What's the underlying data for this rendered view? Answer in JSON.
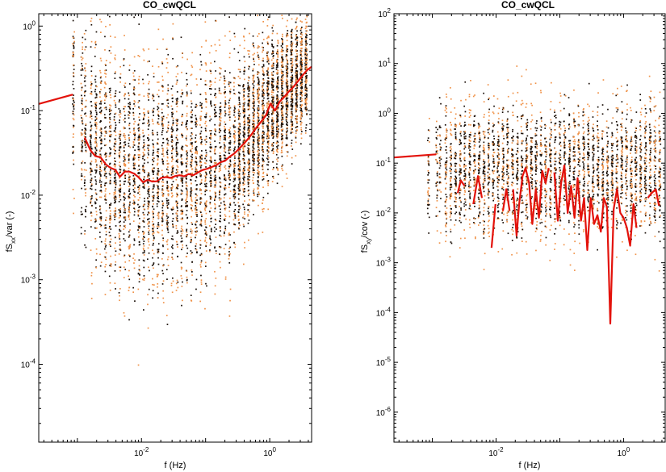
{
  "chart_data": [
    {
      "type": "scatter",
      "title": "CO_cwQCL",
      "xlabel": "f (Hz)",
      "ylabel_main": "fS",
      "ylabel_sub": "xx",
      "ylabel_rest": "/var (-)",
      "xscale": "log",
      "yscale": "log",
      "xlim": [
        0.00025,
        4.5
      ],
      "ylim": [
        1.2e-05,
        1.4
      ],
      "xticks": [
        {
          "v": 0.01,
          "base": "10",
          "exp": "-2"
        },
        {
          "v": 1,
          "base": "10",
          "exp": "0"
        }
      ],
      "yticks": [
        {
          "v": 0.0001,
          "base": "10",
          "exp": "-4"
        },
        {
          "v": 0.001,
          "base": "10",
          "exp": "-3"
        },
        {
          "v": 0.01,
          "base": "10",
          "exp": "-2"
        },
        {
          "v": 0.1,
          "base": "10",
          "exp": "-1"
        },
        {
          "v": 1,
          "base": "10",
          "exp": "0"
        }
      ],
      "scatter_series": [
        {
          "name": "dark points",
          "color": "#1a0f08"
        },
        {
          "name": "orange points",
          "color": "#f0934a"
        }
      ],
      "median_line": {
        "color": "#e3120b",
        "segments": [
          {
            "x": [
              0.00025,
              0.00085
            ],
            "y": [
              0.12,
              0.155
            ]
          },
          {
            "x": [
              0.0013,
              0.0016,
              0.0019,
              0.0023,
              0.0028,
              0.0033,
              0.0039,
              0.0046,
              0.0055,
              0.0065,
              0.0077,
              0.009,
              0.0106,
              0.0125,
              0.0147,
              0.0173,
              0.0204,
              0.024,
              0.0283,
              0.0333,
              0.0392,
              0.0462,
              0.0544,
              0.064,
              0.0754,
              0.0888,
              0.105,
              0.123,
              0.145,
              0.171,
              0.201,
              0.237,
              0.279,
              0.328,
              0.387,
              0.455,
              0.536,
              0.631,
              0.743,
              0.875,
              1.03,
              1.21,
              1.43,
              1.68,
              1.98,
              2.33,
              2.75,
              3.24,
              3.8,
              4.5
            ],
            "y": [
              0.048,
              0.034,
              0.029,
              0.028,
              0.023,
              0.021,
              0.02,
              0.0165,
              0.019,
              0.019,
              0.018,
              0.0163,
              0.0142,
              0.0152,
              0.0145,
              0.0146,
              0.016,
              0.0164,
              0.016,
              0.0168,
              0.0172,
              0.0167,
              0.0178,
              0.0172,
              0.0185,
              0.0198,
              0.0205,
              0.0215,
              0.0225,
              0.0245,
              0.0255,
              0.0285,
              0.031,
              0.035,
              0.04,
              0.046,
              0.054,
              0.064,
              0.075,
              0.088,
              0.121,
              0.1,
              0.128,
              0.145,
              0.168,
              0.19,
              0.222,
              0.26,
              0.3,
              0.33
            ]
          }
        ]
      },
      "envelope": {
        "dark_upper_low_f": 0.1,
        "dark_upper_mid": 0.03,
        "dark_upper_high_f": 0.7,
        "dark_lower_low_f": 0.0015,
        "dark_lower_mid": 0.004,
        "dark_lower_high_f": 0.15
      }
    },
    {
      "type": "scatter",
      "title": "CO_cwQCL",
      "xlabel": "f (Hz)",
      "ylabel_main": "fS",
      "ylabel_sub": "xy",
      "ylabel_rest": "/cov (-)",
      "xscale": "log",
      "yscale": "log",
      "xlim": [
        0.00025,
        4.5
      ],
      "ylim": [
        2.5e-07,
        100
      ],
      "xticks": [
        {
          "v": 0.01,
          "base": "10",
          "exp": "-2"
        },
        {
          "v": 1,
          "base": "10",
          "exp": "0"
        }
      ],
      "yticks": [
        {
          "v": 1e-06,
          "base": "10",
          "exp": "-6"
        },
        {
          "v": 1e-05,
          "base": "10",
          "exp": "-5"
        },
        {
          "v": 0.0001,
          "base": "10",
          "exp": "-4"
        },
        {
          "v": 0.001,
          "base": "10",
          "exp": "-3"
        },
        {
          "v": 0.01,
          "base": "10",
          "exp": "-2"
        },
        {
          "v": 0.1,
          "base": "10",
          "exp": "-1"
        },
        {
          "v": 1,
          "base": "10",
          "exp": "0"
        },
        {
          "v": 10,
          "base": "10",
          "exp": "1"
        },
        {
          "v": 100,
          "base": "10",
          "exp": "2"
        }
      ],
      "scatter_series": [
        {
          "name": "dark points",
          "color": "#1a0f08"
        },
        {
          "name": "orange points",
          "color": "#f0934a"
        }
      ],
      "median_line": {
        "color": "#e3120b",
        "segments": [
          {
            "x": [
              0.00025,
              0.00115
            ],
            "y": [
              0.13,
              0.15
            ]
          },
          {
            "x": [
              0.0025,
              0.0028,
              0.0032
            ],
            "y": [
              0.025,
              0.045,
              0.035
            ]
          },
          {
            "x": [
              0.0044,
              0.0052,
              0.006
            ],
            "y": [
              0.015,
              0.055,
              0.02
            ]
          },
          {
            "x": [
              0.0085,
              0.0098
            ],
            "y": [
              0.002,
              0.015
            ]
          },
          {
            "x": [
              0.0128,
              0.0145,
              0.0163
            ],
            "y": [
              0.011,
              0.03,
              0.011
            ]
          },
          {
            "x": [
              0.0185,
              0.021,
              0.023,
              0.026,
              0.029,
              0.033,
              0.037,
              0.042,
              0.047,
              0.053,
              0.06,
              0.067
            ],
            "y": [
              0.03,
              0.0035,
              0.015,
              0.055,
              0.08,
              0.04,
              0.006,
              0.03,
              0.008,
              0.07,
              0.04,
              0.08
            ]
          },
          {
            "x": [
              0.082,
              0.093,
              0.105,
              0.118,
              0.133,
              0.15,
              0.17,
              0.19,
              0.215,
              0.24,
              0.27,
              0.305,
              0.345,
              0.39,
              0.44,
              0.49,
              0.55,
              0.62,
              0.7,
              0.79,
              0.89,
              1.0,
              1.13,
              1.27,
              1.43,
              1.6
            ],
            "y": [
              0.065,
              0.007,
              0.04,
              0.09,
              0.01,
              0.035,
              0.008,
              0.05,
              0.007,
              0.02,
              0.0018,
              0.02,
              0.006,
              0.009,
              0.0042,
              0.02,
              0.013,
              6e-05,
              0.012,
              0.03,
              0.01,
              0.008,
              0.005,
              0.0022,
              0.015,
              0.005
            ]
          },
          {
            "x": [
              2.4,
              2.75,
              3.2,
              3.6
            ],
            "y": [
              0.02,
              0.025,
              0.03,
              0.014
            ]
          }
        ]
      },
      "envelope": {
        "upper_low_f": 10,
        "upper_high_f": 10,
        "lower_low_f": 0.003,
        "lower_high_f": 0.002
      }
    }
  ]
}
